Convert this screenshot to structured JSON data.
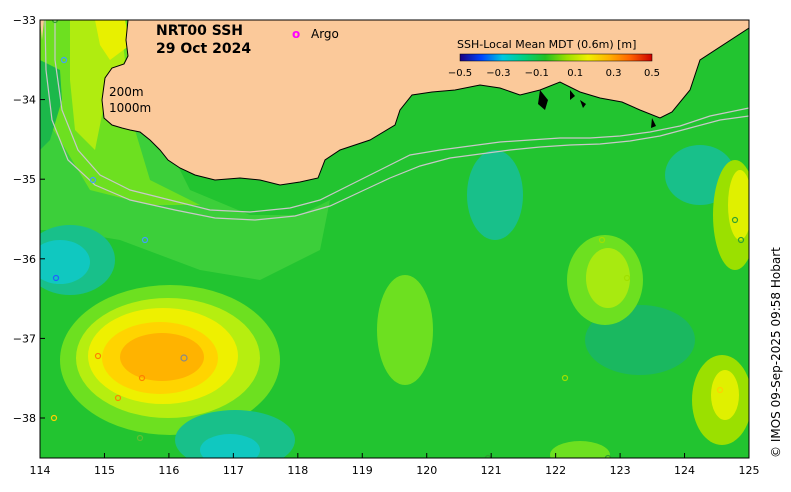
{
  "title": {
    "product": "NRT00 SSH",
    "date": "29 Oct 2024"
  },
  "legend": {
    "argo_symbol": "o",
    "argo_label": "Argo",
    "argo_color": "#ff00ff"
  },
  "contours": {
    "label_200": "200m",
    "label_1000": "1000m"
  },
  "colorbar": {
    "title": "SSH-Local Mean MDT (0.6m) [m]",
    "ticks": [
      "−0.5",
      "−0.3",
      "−0.1",
      "0.1",
      "0.3",
      "0.5"
    ],
    "colors": [
      "#1a0080",
      "#0044ff",
      "#00c8e0",
      "#00d080",
      "#22c022",
      "#9be000",
      "#f0f000",
      "#ffb000",
      "#ff6000",
      "#cc0000"
    ]
  },
  "axes": {
    "x_ticks": [
      "114",
      "115",
      "116",
      "117",
      "118",
      "119",
      "120",
      "121",
      "122",
      "123",
      "124",
      "125"
    ],
    "y_ticks": [
      "−33",
      "−34",
      "−35",
      "−36",
      "−37",
      "−38"
    ]
  },
  "credit": "© IMOS 09-Sep-2025 09:58 Hobart",
  "colors": {
    "land": "#fbc99a",
    "ocean_base": "#22c430"
  }
}
